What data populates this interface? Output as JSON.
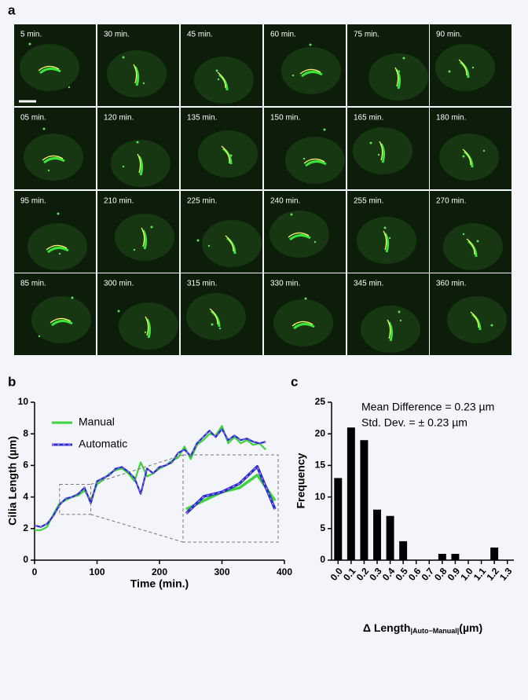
{
  "panel_a": {
    "label": "a",
    "frames": [
      "5 min.",
      "30 min.",
      "45 min.",
      "60 min.",
      "75 min.",
      "90 min.",
      "05 min.",
      "120 min.",
      "135 min.",
      "150 min.",
      "165 min.",
      "180 min.",
      "95 min.",
      "210 min.",
      "225 min.",
      "240 min.",
      "255 min.",
      "270 min.",
      "85 min.",
      "300 min.",
      "315 min.",
      "330 min.",
      "345 min.",
      "360 min."
    ]
  },
  "chart_data": [
    {
      "type": "line",
      "label": "b",
      "xlabel": "Time (min.)",
      "ylabel": "Cilia Length (µm)",
      "x": [
        0,
        10,
        20,
        30,
        40,
        50,
        60,
        70,
        80,
        90,
        100,
        110,
        120,
        130,
        140,
        150,
        160,
        170,
        180,
        190,
        200,
        210,
        220,
        230,
        240,
        250,
        260,
        270,
        280,
        290,
        300,
        310,
        320,
        330,
        340,
        350,
        360,
        370
      ],
      "series": [
        {
          "name": "Manual",
          "color": "#3fd43f",
          "values": [
            1.9,
            1.9,
            2.1,
            2.9,
            3.6,
            3.8,
            4.0,
            4.1,
            4.4,
            3.8,
            4.8,
            5.1,
            5.5,
            5.7,
            5.8,
            5.5,
            5.0,
            6.2,
            5.3,
            5.5,
            5.8,
            6.0,
            6.3,
            6.5,
            7.2,
            6.4,
            7.3,
            7.6,
            8.0,
            7.9,
            8.5,
            7.4,
            7.8,
            7.4,
            7.6,
            7.3,
            7.4,
            7.0
          ]
        },
        {
          "name": "Automatic",
          "color": "#1f2fd0",
          "values": [
            2.2,
            2.1,
            2.3,
            2.8,
            3.5,
            3.9,
            4.0,
            4.2,
            4.6,
            3.6,
            5.0,
            5.2,
            5.4,
            5.8,
            5.9,
            5.6,
            5.2,
            4.2,
            5.8,
            5.5,
            5.9,
            6.0,
            6.2,
            6.8,
            7.0,
            6.6,
            7.4,
            7.8,
            8.2,
            7.8,
            8.3,
            7.6,
            7.9,
            7.6,
            7.7,
            7.5,
            7.4,
            7.5
          ]
        }
      ],
      "xlim": [
        0,
        400
      ],
      "xticks": [
        0,
        100,
        200,
        300,
        400
      ],
      "ylim": [
        0,
        10
      ],
      "yticks": [
        0,
        2,
        4,
        6,
        8,
        10
      ],
      "legend": "upper left"
    },
    {
      "type": "bar",
      "label": "c",
      "xlabel": "Δ Length",
      "xlabel_subscript": "|Auto−Manual|",
      "xlabel_unit": "(µm)",
      "ylabel": "Frequency",
      "annotations": [
        "Mean Difference = 0.23 µm",
        "Std. Dev. = ± 0.23 µm"
      ],
      "categories": [
        "0.0",
        "0.1",
        "0.2",
        "0.3",
        "0.4",
        "0.5",
        "0.6",
        "0.7",
        "0.8",
        "0.9",
        "1.0",
        "1.1",
        "1.2",
        "1.3"
      ],
      "values": [
        13,
        21,
        19,
        8,
        7,
        3,
        0,
        0,
        1,
        1,
        0,
        0,
        2,
        0
      ],
      "color": "#000000",
      "ylim": [
        0,
        25
      ],
      "yticks": [
        0,
        5,
        10,
        15,
        20,
        25
      ]
    }
  ]
}
